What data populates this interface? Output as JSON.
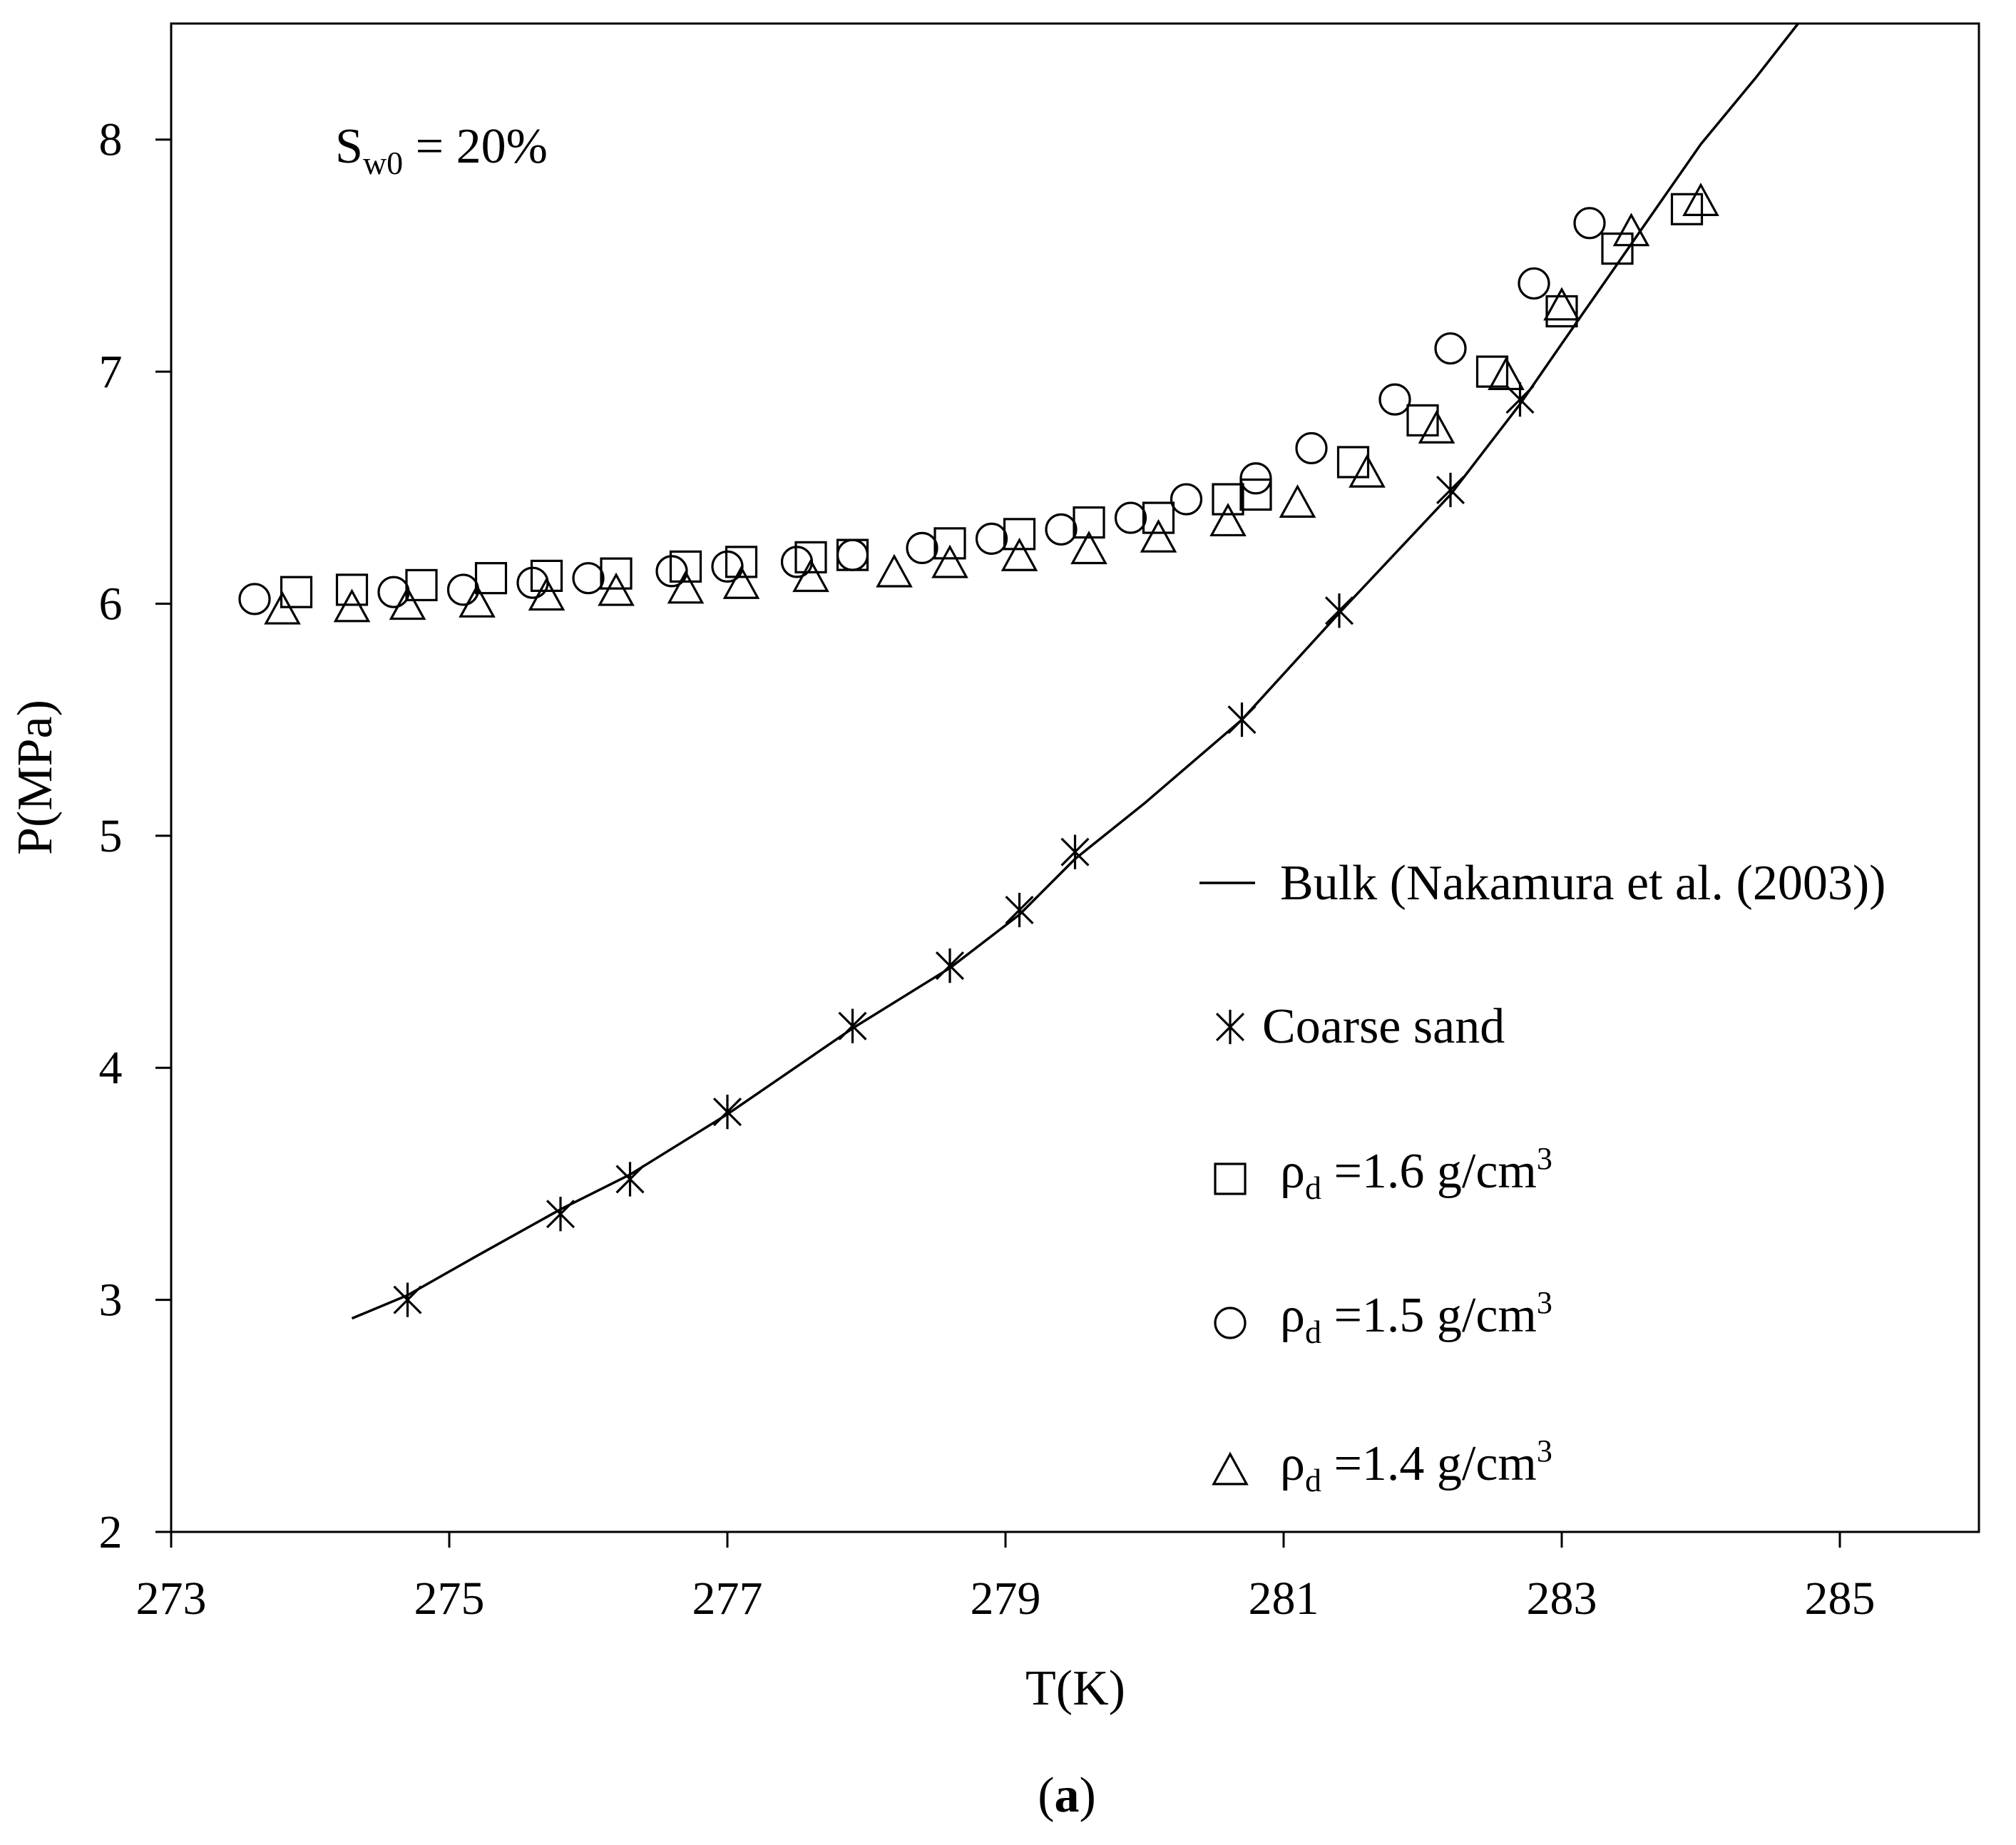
{
  "chart_data": {
    "type": "scatter",
    "title": "",
    "xlabel": "T(K)",
    "ylabel": "P(MPa)",
    "xlim": [
      273,
      286
    ],
    "ylim": [
      2,
      8.5
    ],
    "xticks": [
      273,
      275,
      277,
      279,
      281,
      283,
      285
    ],
    "xtick_labels": [
      "273",
      "275",
      "277",
      "279",
      "281",
      "283",
      "285"
    ],
    "yticks": [
      2,
      3,
      4,
      5,
      6,
      7,
      8
    ],
    "ytick_labels": [
      "2",
      "3",
      "4",
      "5",
      "6",
      "7",
      "8"
    ],
    "grid": false,
    "legend_position": "lower-right",
    "annotation": {
      "main": "S",
      "sub": "w0",
      "rest": " = 20%"
    },
    "caption": {
      "open": "(",
      "letter": "a",
      "close": ")"
    },
    "series": [
      {
        "name": "Bulk (Nakamura et al. (2003))",
        "marker": "line",
        "x": [
          274.3,
          274.7,
          275.2,
          275.8,
          276.3,
          277.0,
          277.9,
          278.6,
          279.1,
          279.5,
          280.0,
          280.7,
          281.4,
          282.2,
          282.7,
          283.0,
          283.5,
          284.0,
          284.4,
          284.7
        ],
        "y": [
          2.92,
          3.02,
          3.19,
          3.39,
          3.54,
          3.8,
          4.17,
          4.43,
          4.66,
          4.9,
          5.14,
          5.5,
          5.96,
          6.47,
          6.86,
          7.12,
          7.55,
          7.98,
          8.27,
          8.52
        ]
      },
      {
        "name": "Coarse sand",
        "marker": "asterisk",
        "x": [
          274.7,
          275.8,
          276.3,
          277.0,
          277.9,
          278.6,
          279.1,
          279.5,
          280.7,
          281.4,
          282.2,
          282.7
        ],
        "y": [
          3.0,
          3.37,
          3.52,
          3.81,
          4.18,
          4.44,
          4.68,
          4.93,
          5.5,
          5.97,
          6.49,
          6.88
        ]
      },
      {
        "name": "ρd =1.6 g/cm3",
        "label": {
          "main": "ρ",
          "sub": "d",
          "mid": " =1.6 g/cm",
          "sup": "3"
        },
        "marker": "square",
        "x": [
          273.9,
          274.3,
          274.8,
          275.3,
          275.7,
          276.2,
          276.7,
          277.1,
          277.6,
          277.9,
          278.6,
          279.1,
          279.6,
          280.1,
          280.6,
          280.8,
          281.5,
          282.0,
          282.5,
          283.0,
          283.4,
          283.9
        ],
        "y": [
          6.05,
          6.06,
          6.08,
          6.11,
          6.12,
          6.13,
          6.16,
          6.18,
          6.2,
          6.21,
          6.26,
          6.3,
          6.35,
          6.37,
          6.45,
          6.47,
          6.61,
          6.79,
          7.0,
          7.26,
          7.53,
          7.7
        ]
      },
      {
        "name": "ρd =1.5 g/cm3",
        "label": {
          "main": "ρ",
          "sub": "d",
          "mid": " =1.5 g/cm",
          "sup": "3"
        },
        "marker": "circle",
        "x": [
          273.6,
          274.6,
          275.1,
          275.6,
          276.0,
          276.6,
          277.0,
          277.5,
          277.9,
          278.4,
          278.9,
          279.4,
          279.9,
          280.3,
          280.8,
          281.2,
          281.8,
          282.2,
          282.8,
          283.2
        ],
        "y": [
          6.02,
          6.05,
          6.06,
          6.09,
          6.11,
          6.14,
          6.16,
          6.18,
          6.21,
          6.24,
          6.28,
          6.32,
          6.37,
          6.45,
          6.54,
          6.67,
          6.88,
          7.1,
          7.38,
          7.64
        ]
      },
      {
        "name": "ρd =1.4 g/cm3",
        "label": {
          "main": "ρ",
          "sub": "d",
          "mid": " =1.4 g/cm",
          "sup": "3"
        },
        "marker": "triangle",
        "x": [
          273.8,
          274.3,
          274.7,
          275.2,
          275.7,
          276.2,
          276.7,
          277.1,
          277.6,
          278.2,
          278.6,
          279.1,
          279.6,
          280.1,
          280.6,
          281.1,
          281.6,
          282.1,
          282.6,
          283.0,
          283.5,
          284.0
        ],
        "y": [
          5.97,
          5.98,
          5.99,
          6.0,
          6.03,
          6.05,
          6.06,
          6.08,
          6.11,
          6.13,
          6.17,
          6.2,
          6.23,
          6.28,
          6.35,
          6.43,
          6.56,
          6.75,
          6.98,
          7.28,
          7.6,
          7.73
        ]
      }
    ]
  }
}
